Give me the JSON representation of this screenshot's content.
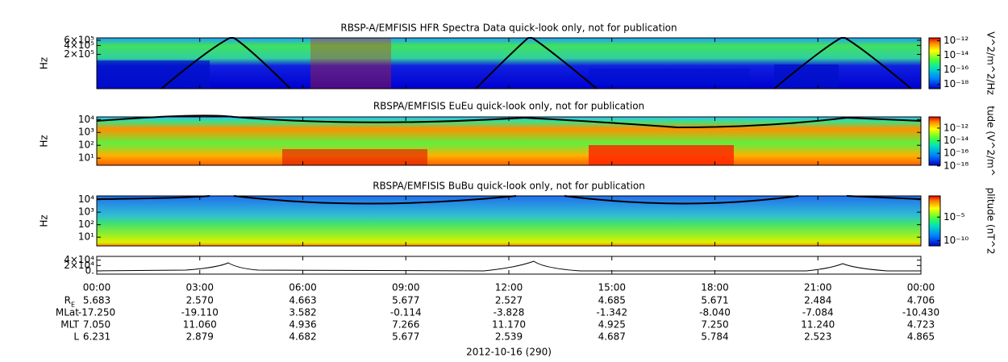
{
  "chart_data": [
    {
      "type": "spectrogram",
      "title": "RBSP-A/EMFISIS  HFR Spectra Data quick-look only, not for publication",
      "ylabel": "Hz",
      "log_scale": true,
      "ylim": [
        14000,
        720000
      ],
      "yticks": [
        {
          "value": 200000,
          "label": "2×10⁵"
        },
        {
          "value": 400000,
          "label": "4×10⁵"
        },
        {
          "value": 600000,
          "label": "6×10⁵"
        }
      ],
      "colorbar": {
        "label": "V^2/m^2/Hz",
        "clim": [
          2.5e-19,
          2.5e-12
        ],
        "ticks": [
          {
            "value": 1e-12,
            "label": "10⁻¹²"
          },
          {
            "value": 1e-14,
            "label": "10⁻¹⁴"
          },
          {
            "value": 1e-16,
            "label": "10⁻¹⁶"
          },
          {
            "value": 1e-18,
            "label": "10⁻¹⁸"
          }
        ]
      }
    },
    {
      "type": "spectrogram",
      "title": "RBSPA/EMFISIS  EuEu quick-look only, not for publication",
      "ylabel": "Hz",
      "log_scale": true,
      "ylim": [
        2.8,
        16000
      ],
      "yticks": [
        {
          "value": 10,
          "label": "10¹"
        },
        {
          "value": 100,
          "label": "10²"
        },
        {
          "value": 1000,
          "label": "10³"
        },
        {
          "value": 10000,
          "label": "10⁴"
        }
      ],
      "colorbar": {
        "label": "tude (V^2/m^",
        "clim": [
          1.3e-18,
          6e-11
        ],
        "ticks": [
          {
            "value": 1e-12,
            "label": "10⁻¹²"
          },
          {
            "value": 1e-14,
            "label": "10⁻¹⁴"
          },
          {
            "value": 1e-16,
            "label": "10⁻¹⁶"
          },
          {
            "value": 1e-18,
            "label": "10⁻¹⁸"
          }
        ]
      }
    },
    {
      "type": "spectrogram",
      "title": "RBSPA/EMFISIS  BuBu quick-look only, not for publication",
      "ylabel": "Hz",
      "log_scale": true,
      "ylim": [
        2,
        20000
      ],
      "yticks": [
        {
          "value": 10,
          "label": "10¹"
        },
        {
          "value": 100,
          "label": "10²"
        },
        {
          "value": 1000,
          "label": "10³"
        },
        {
          "value": 10000,
          "label": "10⁴"
        }
      ],
      "colorbar": {
        "label": "plitude (nT^2",
        "clim": [
          8e-12,
          0.3
        ],
        "ticks": [
          {
            "value": 1e-05,
            "label": "10⁻⁵"
          },
          {
            "value": 1e-10,
            "label": "10⁻¹⁰"
          }
        ]
      }
    },
    {
      "type": "line",
      "ylim": [
        -12000,
        54000
      ],
      "yticks": [
        {
          "value": 0,
          "label": "0."
        },
        {
          "value": 20000,
          "label": "2×10⁴"
        },
        {
          "value": 40000,
          "label": "4×10⁴"
        }
      ]
    }
  ],
  "time_axis": {
    "xlim": [
      0,
      24
    ],
    "xticks": [
      {
        "value": 0,
        "label": "00:00"
      },
      {
        "value": 3,
        "label": "03:00"
      },
      {
        "value": 6,
        "label": "06:00"
      },
      {
        "value": 9,
        "label": "09:00"
      },
      {
        "value": 12,
        "label": "12:00"
      },
      {
        "value": 15,
        "label": "15:00"
      },
      {
        "value": 18,
        "label": "18:00"
      },
      {
        "value": 21,
        "label": "21:00"
      },
      {
        "value": 24,
        "label": "00:00"
      }
    ],
    "date_label": "2012-10-16 (290)"
  },
  "ephemeris": [
    {
      "label": "R",
      "subscript": "E",
      "values": [
        "5.683",
        "2.570",
        "4.663",
        "5.677",
        "2.527",
        "4.685",
        "5.671",
        "2.484",
        "4.706"
      ]
    },
    {
      "label": "MLat",
      "values": [
        "-17.250",
        "-19.110",
        "3.582",
        "-0.114",
        "-3.828",
        "-1.342",
        "-8.040",
        "-7.084",
        "-10.430"
      ]
    },
    {
      "label": "MLT",
      "values": [
        "7.050",
        "11.060",
        "4.936",
        "7.266",
        "11.170",
        "4.925",
        "7.250",
        "11.240",
        "4.723"
      ]
    },
    {
      "label": "L",
      "values": [
        "6.231",
        "2.879",
        "4.682",
        "5.677",
        "2.539",
        "4.687",
        "5.784",
        "2.523",
        "4.865"
      ]
    }
  ]
}
